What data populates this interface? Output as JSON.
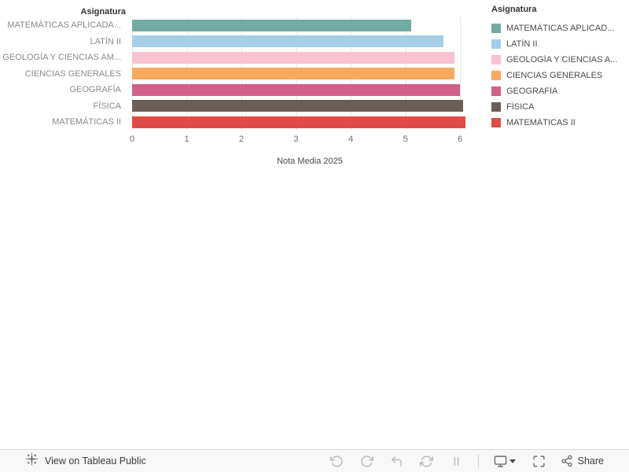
{
  "chart_data": {
    "type": "bar",
    "orientation": "horizontal",
    "row_header": "Asignatura",
    "categories": [
      "MATEMÁTICAS APLICADA...",
      "LATÍN II",
      "GEOLOGÍA Y CIENCIAS AM...",
      "CIENCIAS GENERALES",
      "GEOGRAFÍA",
      "FÍSICA",
      "MATEMÁTICAS II"
    ],
    "values": [
      5.1,
      5.7,
      5.9,
      5.9,
      6.0,
      6.05,
      6.1
    ],
    "colors": [
      "#72ABA3",
      "#A6CEE9",
      "#F9C2D1",
      "#FAAA5F",
      "#D0608A",
      "#6A5E57",
      "#E14B47"
    ],
    "xlabel": "Nota Media 2025",
    "xlim": [
      0,
      6.5
    ],
    "xticks": [
      0,
      1,
      2,
      3,
      4,
      5,
      6
    ],
    "grid": true,
    "legend_position": "right"
  },
  "legend": {
    "title": "Asignatura",
    "items": [
      {
        "label": "MATEMÁTICAS APLICAD...",
        "color": "#72ABA3"
      },
      {
        "label": "LATÍN II",
        "color": "#A6CEE9"
      },
      {
        "label": "GEOLOGÍA Y CIENCIAS A...",
        "color": "#F9C2D1"
      },
      {
        "label": "CIENCIAS GENERALES",
        "color": "#FAAA5F"
      },
      {
        "label": "GEOGRAFÍA",
        "color": "#D0608A"
      },
      {
        "label": "FÍSICA",
        "color": "#6A5E57"
      },
      {
        "label": "MATEMÁTICAS II",
        "color": "#E14B47"
      }
    ]
  },
  "toolbar": {
    "brand_label": "View on Tableau Public",
    "share_label": "Share",
    "buttons": [
      "undo",
      "redo",
      "revert",
      "refresh",
      "pause",
      "download",
      "fullscreen",
      "share"
    ]
  }
}
